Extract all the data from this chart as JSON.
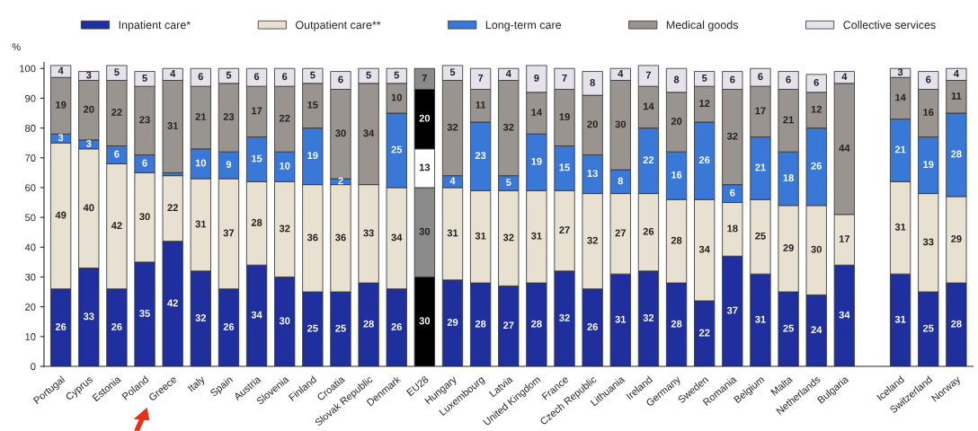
{
  "chart_data": {
    "type": "bar",
    "stacked": true,
    "ylabel": "%",
    "ylim": [
      0,
      102
    ],
    "yticks": [
      0,
      10,
      20,
      30,
      40,
      50,
      60,
      70,
      80,
      90,
      100
    ],
    "grid": false,
    "legend": "top",
    "categories": [
      "Portugal",
      "Cyprus",
      "Estonia",
      "Poland",
      "Greece",
      "Italy",
      "Spain",
      "Austria",
      "Slovenia",
      "Finland",
      "Croatia",
      "Slovak Republic",
      "Denmark",
      "EU28",
      "Hungary",
      "Luxembourg",
      "Latvia",
      "United Kingdom",
      "France",
      "Czech Republic",
      "Lithuania",
      "Ireland",
      "Germany",
      "Sweden",
      "Romania",
      "Belgium",
      "Malta",
      "Netherlands",
      "Bulgaria",
      null,
      "Iceland",
      "Switzerland",
      "Norway"
    ],
    "series": [
      {
        "name": "Inpatient care*",
        "color": "#1f2f9e",
        "colors": [
          null,
          null,
          null,
          null,
          null,
          null,
          null,
          null,
          null,
          null,
          null,
          null,
          null,
          "#000000",
          null,
          null,
          null,
          null,
          null,
          null,
          null,
          null,
          null,
          null,
          null,
          null,
          null,
          null,
          null,
          null,
          null,
          null,
          null
        ],
        "values": [
          26,
          33,
          26,
          35,
          42,
          32,
          26,
          34,
          30,
          25,
          25,
          28,
          26,
          30,
          29,
          28,
          27,
          28,
          32,
          26,
          31,
          32,
          28,
          22,
          37,
          31,
          25,
          24,
          34,
          null,
          31,
          25,
          28
        ],
        "value_labels": [
          "26",
          "33",
          "26",
          "35",
          "42",
          "32",
          "26",
          "34",
          "30",
          "25",
          "25",
          "28",
          "26",
          "30",
          "29",
          "28",
          "27",
          "28",
          "32",
          "26",
          "31",
          "32",
          "28",
          "22",
          "37",
          "31",
          "25",
          "24",
          "34",
          null,
          "31",
          "25",
          "28"
        ]
      },
      {
        "name": "Outpatient care**",
        "color": "#e8e0d0",
        "colors": [
          null,
          null,
          null,
          null,
          null,
          null,
          null,
          null,
          null,
          null,
          null,
          null,
          null,
          "#8a8a8a",
          null,
          null,
          null,
          null,
          null,
          null,
          null,
          null,
          null,
          null,
          null,
          null,
          null,
          null,
          null,
          null,
          null,
          null,
          null
        ],
        "values": [
          49,
          40,
          42,
          30,
          22,
          31,
          37,
          28,
          32,
          36,
          36,
          33,
          34,
          30,
          31,
          31,
          32,
          31,
          27,
          32,
          27,
          26,
          28,
          34,
          18,
          25,
          29,
          30,
          17,
          null,
          31,
          33,
          29
        ],
        "value_labels": [
          "49",
          "40",
          "42",
          "30",
          "22",
          "31",
          "37",
          "28",
          "32",
          "36",
          "36",
          "33",
          "34",
          "30",
          "31",
          "31",
          "32",
          "31",
          "27",
          "32",
          "27",
          "26",
          "28",
          "34",
          "18",
          "25",
          "29",
          "30",
          "17",
          null,
          "31",
          "33",
          "29"
        ]
      },
      {
        "name": "Long-term care",
        "color": "#3a78d8",
        "colors": [
          null,
          null,
          null,
          null,
          null,
          null,
          null,
          null,
          null,
          null,
          null,
          null,
          null,
          "#ffffff",
          null,
          null,
          null,
          null,
          null,
          null,
          null,
          null,
          null,
          null,
          null,
          null,
          null,
          null,
          null,
          null,
          null,
          null,
          null
        ],
        "values": [
          3,
          3,
          6,
          6,
          1,
          10,
          9,
          15,
          10,
          19,
          2,
          null,
          25,
          13,
          4,
          23,
          5,
          19,
          15,
          13,
          8,
          22,
          16,
          26,
          6,
          21,
          18,
          26,
          null,
          null,
          21,
          19,
          28
        ],
        "value_labels": [
          "3",
          "3",
          "6",
          "6",
          null,
          "10",
          "9",
          "15",
          "10",
          "19",
          "2",
          null,
          "25",
          "13",
          "4",
          "23",
          "5",
          "19",
          "15",
          "13",
          "8",
          "22",
          "16",
          "26",
          "6",
          "21",
          "18",
          "26",
          null,
          null,
          "21",
          "19",
          "28"
        ]
      },
      {
        "name": "Medical goods",
        "color": "#9a9490",
        "colors": [
          null,
          null,
          null,
          null,
          null,
          null,
          null,
          null,
          null,
          null,
          null,
          null,
          null,
          "#000000",
          null,
          null,
          null,
          null,
          null,
          null,
          null,
          null,
          null,
          null,
          null,
          null,
          null,
          null,
          null,
          null,
          null,
          null,
          null
        ],
        "values": [
          19,
          20,
          22,
          23,
          31,
          21,
          23,
          17,
          22,
          15,
          30,
          34,
          10,
          20,
          32,
          11,
          32,
          14,
          19,
          20,
          30,
          14,
          20,
          12,
          32,
          17,
          21,
          12,
          44,
          null,
          14,
          16,
          11
        ],
        "value_labels": [
          "19",
          "20",
          "22",
          "23",
          "31",
          "21",
          "23",
          "17",
          "22",
          "15",
          "30",
          "34",
          "10",
          "20",
          "32",
          "11",
          "32",
          "14",
          "19",
          "20",
          "30",
          "14",
          "20",
          "12",
          "32",
          "17",
          "21",
          "12",
          "44",
          null,
          "14",
          "16",
          "11"
        ]
      },
      {
        "name": "Collective services",
        "color": "#e6e2ec",
        "colors": [
          null,
          null,
          null,
          null,
          null,
          null,
          null,
          null,
          null,
          null,
          null,
          null,
          null,
          "#8a8a8a",
          null,
          null,
          null,
          null,
          null,
          null,
          null,
          null,
          null,
          null,
          null,
          null,
          null,
          null,
          null,
          null,
          null,
          null,
          null
        ],
        "values": [
          4,
          3,
          5,
          5,
          4,
          6,
          5,
          6,
          6,
          5,
          6,
          5,
          5,
          7,
          5,
          7,
          4,
          9,
          7,
          8,
          4,
          7,
          8,
          5,
          6,
          6,
          6,
          6,
          4,
          null,
          3,
          6,
          4
        ],
        "value_labels": [
          "4",
          "3",
          "5",
          "5",
          "4",
          "6",
          "5",
          "6",
          "6",
          "5",
          "6",
          "5",
          "5",
          "7",
          "5",
          "7",
          "4",
          "9",
          "7",
          "8",
          "4",
          "7",
          "8",
          "5",
          "6",
          "6",
          "6",
          "6",
          "4",
          null,
          "3",
          "6",
          "4"
        ]
      }
    ]
  }
}
